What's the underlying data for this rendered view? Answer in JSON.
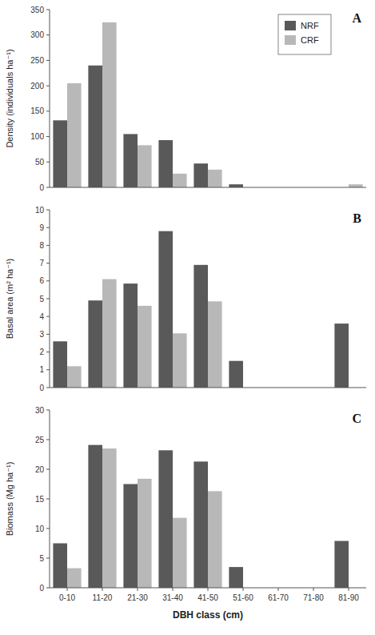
{
  "chart_data": [
    {
      "type": "bar",
      "title": "A",
      "categories": [
        "0-10",
        "11-20",
        "21-30",
        "31-40",
        "41-50",
        "51-60",
        "61-70",
        "71-80",
        "81-90"
      ],
      "series": [
        {
          "name": "NRF",
          "color": "#595959",
          "values": [
            132,
            240,
            105,
            93,
            47,
            6,
            0,
            0,
            0
          ]
        },
        {
          "name": "CRF",
          "color": "#b8b8b8",
          "values": [
            205,
            325,
            83,
            27,
            35,
            0,
            0,
            0,
            6
          ]
        }
      ],
      "ylabel": "Density (individuals ha⁻¹)",
      "ylim": [
        0,
        350
      ],
      "yticks": [
        0,
        50,
        100,
        150,
        200,
        250,
        300,
        350
      ],
      "legend": "upper right",
      "tick_labels": "y"
    },
    {
      "type": "bar",
      "title": "B",
      "categories": [
        "0-10",
        "11-20",
        "21-30",
        "31-40",
        "41-50",
        "51-60",
        "61-70",
        "71-80",
        "81-90"
      ],
      "series": [
        {
          "color": "#595959",
          "values": [
            2.6,
            4.9,
            5.85,
            8.8,
            6.9,
            1.5,
            0,
            0,
            3.6
          ]
        },
        {
          "color": "#b8b8b8",
          "values": [
            1.2,
            6.1,
            4.6,
            3.05,
            4.85,
            0,
            0,
            0,
            0
          ]
        }
      ],
      "ylabel": "Basal area (m² ha⁻¹)",
      "ylim": [
        0,
        10
      ],
      "yticks": [
        0,
        1,
        2,
        3,
        4,
        5,
        6,
        7,
        8,
        9,
        10
      ],
      "tick_labels": "y"
    },
    {
      "type": "bar",
      "title": "C",
      "categories": [
        "0-10",
        "11-20",
        "21-30",
        "31-40",
        "41-50",
        "51-60",
        "61-70",
        "71-80",
        "81-90"
      ],
      "series": [
        {
          "color": "#595959",
          "values": [
            7.5,
            24.1,
            17.5,
            23.2,
            21.3,
            3.5,
            0,
            0,
            7.9
          ]
        },
        {
          "color": "#b8b8b8",
          "values": [
            3.3,
            23.5,
            18.4,
            11.8,
            16.3,
            0,
            0,
            0,
            0
          ]
        }
      ],
      "ylabel": "Biomass (Mg ha⁻¹)",
      "xlabel": "DBH class (cm)",
      "ylim": [
        0,
        30
      ],
      "yticks": [
        0,
        5,
        10,
        15,
        20,
        25,
        30
      ]
    }
  ]
}
